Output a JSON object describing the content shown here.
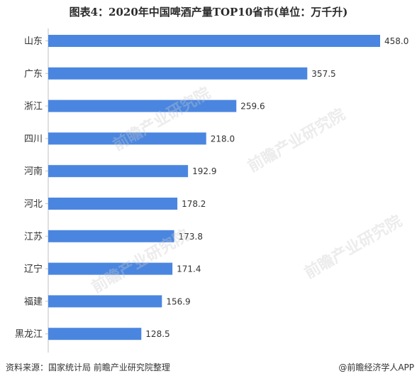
{
  "chart_data": {
    "type": "bar",
    "orientation": "horizontal",
    "title": "图表4：2020年中国啤酒产量TOP10省市(单位：万千升)",
    "categories": [
      "山东",
      "广东",
      "浙江",
      "四川",
      "河南",
      "河北",
      "江苏",
      "辽宁",
      "福建",
      "黑龙江"
    ],
    "values": [
      458.0,
      357.5,
      259.6,
      218.0,
      192.9,
      178.2,
      173.8,
      171.4,
      156.9,
      128.5
    ],
    "value_labels": [
      "458.0",
      "357.5",
      "259.6",
      "218.0",
      "192.9",
      "178.2",
      "173.8",
      "171.4",
      "156.9",
      "128.5"
    ],
    "xlim": [
      0,
      458.0
    ],
    "grid": false,
    "legend": "none",
    "bar_color": "#4a86e0"
  },
  "footer": {
    "source": "资料来源：国家统计局 前瞻产业研究院整理",
    "credit": "@前瞻经济学人APP"
  },
  "watermark": "前瞻产业研究院"
}
